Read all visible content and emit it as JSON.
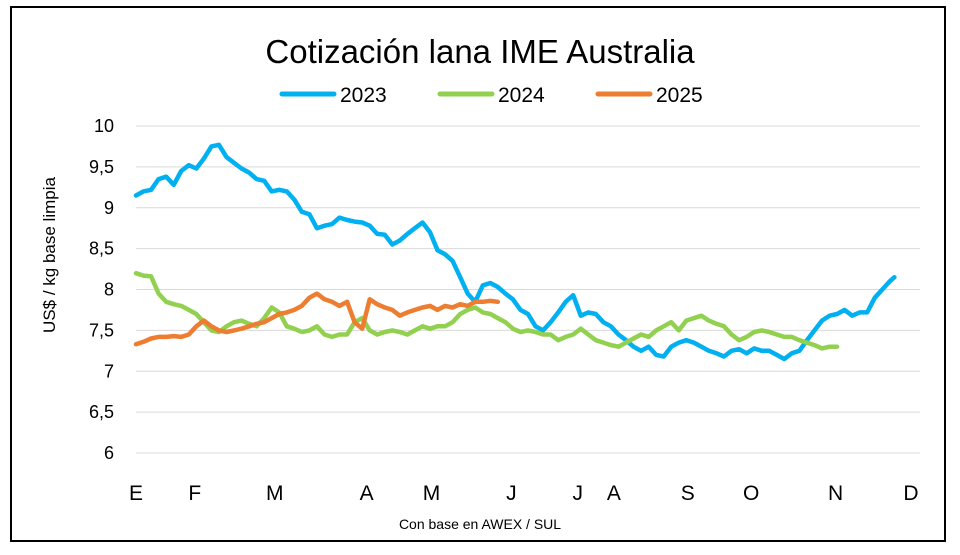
{
  "chart_data": {
    "type": "line",
    "title": "Cotización lana IME Australia",
    "ylabel": "US$ / kg base limpia",
    "xlabel": "Con base en AWEX / SUL",
    "ylim": [
      6,
      10
    ],
    "xlim": [
      0,
      52
    ],
    "y_ticks": [
      "6",
      "6,5",
      "7",
      "7,5",
      "8",
      "8,5",
      "9",
      "9,5",
      "10"
    ],
    "y_tick_values": [
      6,
      6.5,
      7,
      7.5,
      8,
      8.5,
      9,
      9.5,
      10
    ],
    "months": [
      "E",
      "F",
      "M",
      "A",
      "M",
      "J",
      "J",
      "A",
      "S",
      "O",
      "N",
      "D"
    ],
    "month_positions": [
      0,
      3.9,
      9.2,
      15.3,
      19.6,
      24.9,
      29.3,
      31.7,
      36.6,
      40.8,
      46.4,
      51.4
    ],
    "grid": true,
    "legend": "top",
    "series": [
      {
        "name": "2023",
        "color": "#00B0F0",
        "points": [
          [
            0,
            9.15
          ],
          [
            0.5,
            9.2
          ],
          [
            1,
            9.22
          ],
          [
            1.5,
            9.35
          ],
          [
            2,
            9.38
          ],
          [
            2.5,
            9.28
          ],
          [
            3,
            9.45
          ],
          [
            3.5,
            9.52
          ],
          [
            4,
            9.48
          ],
          [
            4.5,
            9.6
          ],
          [
            5,
            9.75
          ],
          [
            5.5,
            9.77
          ],
          [
            6,
            9.62
          ],
          [
            6.5,
            9.55
          ],
          [
            7,
            9.48
          ],
          [
            7.5,
            9.43
          ],
          [
            8,
            9.35
          ],
          [
            8.5,
            9.33
          ],
          [
            9,
            9.2
          ],
          [
            9.5,
            9.22
          ],
          [
            10,
            9.2
          ],
          [
            10.5,
            9.1
          ],
          [
            11,
            8.95
          ],
          [
            11.5,
            8.92
          ],
          [
            12,
            8.75
          ],
          [
            12.5,
            8.78
          ],
          [
            13,
            8.8
          ],
          [
            13.5,
            8.88
          ],
          [
            14,
            8.85
          ],
          [
            14.5,
            8.83
          ],
          [
            15,
            8.82
          ],
          [
            15.5,
            8.78
          ],
          [
            16,
            8.68
          ],
          [
            16.5,
            8.67
          ],
          [
            17,
            8.55
          ],
          [
            17.5,
            8.6
          ],
          [
            18,
            8.68
          ],
          [
            18.5,
            8.75
          ],
          [
            19,
            8.82
          ],
          [
            19.5,
            8.7
          ],
          [
            20,
            8.48
          ],
          [
            20.5,
            8.43
          ],
          [
            21,
            8.35
          ],
          [
            21.5,
            8.15
          ],
          [
            22,
            7.95
          ],
          [
            22.5,
            7.85
          ],
          [
            23,
            8.05
          ],
          [
            23.5,
            8.08
          ],
          [
            24,
            8.03
          ],
          [
            24.5,
            7.95
          ],
          [
            25,
            7.88
          ],
          [
            25.5,
            7.75
          ],
          [
            26,
            7.7
          ],
          [
            26.5,
            7.55
          ],
          [
            27,
            7.5
          ],
          [
            27.5,
            7.6
          ],
          [
            28,
            7.72
          ],
          [
            28.5,
            7.85
          ],
          [
            29,
            7.93
          ],
          [
            29.5,
            7.68
          ],
          [
            30,
            7.72
          ],
          [
            30.5,
            7.7
          ],
          [
            31,
            7.6
          ],
          [
            31.5,
            7.55
          ],
          [
            32,
            7.45
          ],
          [
            32.5,
            7.38
          ],
          [
            33,
            7.3
          ],
          [
            33.5,
            7.25
          ],
          [
            34,
            7.3
          ],
          [
            34.5,
            7.2
          ],
          [
            35,
            7.18
          ],
          [
            35.5,
            7.3
          ],
          [
            36,
            7.35
          ],
          [
            36.5,
            7.38
          ],
          [
            37,
            7.35
          ],
          [
            37.5,
            7.3
          ],
          [
            38,
            7.25
          ],
          [
            38.5,
            7.22
          ],
          [
            39,
            7.18
          ],
          [
            39.5,
            7.25
          ],
          [
            40,
            7.27
          ],
          [
            40.5,
            7.22
          ],
          [
            41,
            7.28
          ],
          [
            41.5,
            7.25
          ],
          [
            42,
            7.25
          ],
          [
            42.5,
            7.2
          ],
          [
            43,
            7.15
          ],
          [
            43.5,
            7.22
          ],
          [
            44,
            7.25
          ],
          [
            44.5,
            7.38
          ],
          [
            45,
            7.5
          ],
          [
            45.5,
            7.62
          ],
          [
            46,
            7.68
          ],
          [
            46.5,
            7.7
          ],
          [
            47,
            7.75
          ],
          [
            47.5,
            7.68
          ],
          [
            48,
            7.72
          ],
          [
            48.5,
            7.72
          ],
          [
            49,
            7.9
          ],
          [
            49.5,
            8.0
          ],
          [
            50,
            8.1
          ],
          [
            50.3,
            8.15
          ]
        ]
      },
      {
        "name": "2024",
        "color": "#92D050",
        "points": [
          [
            0,
            8.2
          ],
          [
            0.5,
            8.17
          ],
          [
            1,
            8.16
          ],
          [
            1.5,
            7.95
          ],
          [
            2,
            7.85
          ],
          [
            2.5,
            7.82
          ],
          [
            3,
            7.8
          ],
          [
            3.5,
            7.75
          ],
          [
            4,
            7.7
          ],
          [
            4.5,
            7.6
          ],
          [
            5,
            7.5
          ],
          [
            5.5,
            7.48
          ],
          [
            6,
            7.55
          ],
          [
            6.5,
            7.6
          ],
          [
            7,
            7.62
          ],
          [
            7.5,
            7.58
          ],
          [
            8,
            7.55
          ],
          [
            8.5,
            7.65
          ],
          [
            9,
            7.78
          ],
          [
            9.5,
            7.72
          ],
          [
            10,
            7.55
          ],
          [
            10.5,
            7.52
          ],
          [
            11,
            7.48
          ],
          [
            11.5,
            7.5
          ],
          [
            12,
            7.55
          ],
          [
            12.5,
            7.45
          ],
          [
            13,
            7.42
          ],
          [
            13.5,
            7.45
          ],
          [
            14,
            7.45
          ],
          [
            14.5,
            7.6
          ],
          [
            15,
            7.65
          ],
          [
            15.5,
            7.5
          ],
          [
            16,
            7.45
          ],
          [
            16.5,
            7.48
          ],
          [
            17,
            7.5
          ],
          [
            17.5,
            7.48
          ],
          [
            18,
            7.45
          ],
          [
            18.5,
            7.5
          ],
          [
            19,
            7.55
          ],
          [
            19.5,
            7.52
          ],
          [
            20,
            7.55
          ],
          [
            20.5,
            7.55
          ],
          [
            21,
            7.6
          ],
          [
            21.5,
            7.7
          ],
          [
            22,
            7.75
          ],
          [
            22.5,
            7.78
          ],
          [
            23,
            7.72
          ],
          [
            23.5,
            7.7
          ],
          [
            24,
            7.65
          ],
          [
            24.5,
            7.6
          ],
          [
            25,
            7.52
          ],
          [
            25.5,
            7.48
          ],
          [
            26,
            7.5
          ],
          [
            26.5,
            7.48
          ],
          [
            27,
            7.45
          ],
          [
            27.5,
            7.45
          ],
          [
            28,
            7.38
          ],
          [
            28.5,
            7.42
          ],
          [
            29,
            7.45
          ],
          [
            29.5,
            7.52
          ],
          [
            30,
            7.45
          ],
          [
            30.5,
            7.38
          ],
          [
            31,
            7.35
          ],
          [
            31.5,
            7.32
          ],
          [
            32,
            7.3
          ],
          [
            32.5,
            7.35
          ],
          [
            33,
            7.4
          ],
          [
            33.5,
            7.45
          ],
          [
            34,
            7.42
          ],
          [
            34.5,
            7.5
          ],
          [
            35,
            7.55
          ],
          [
            35.5,
            7.6
          ],
          [
            36,
            7.5
          ],
          [
            36.5,
            7.62
          ],
          [
            37,
            7.65
          ],
          [
            37.5,
            7.68
          ],
          [
            38,
            7.62
          ],
          [
            38.5,
            7.58
          ],
          [
            39,
            7.55
          ],
          [
            39.5,
            7.45
          ],
          [
            40,
            7.38
          ],
          [
            40.5,
            7.42
          ],
          [
            41,
            7.48
          ],
          [
            41.5,
            7.5
          ],
          [
            42,
            7.48
          ],
          [
            42.5,
            7.45
          ],
          [
            43,
            7.42
          ],
          [
            43.5,
            7.42
          ],
          [
            44,
            7.38
          ],
          [
            44.5,
            7.35
          ],
          [
            45,
            7.32
          ],
          [
            45.5,
            7.28
          ],
          [
            46,
            7.3
          ],
          [
            46.5,
            7.3
          ]
        ]
      },
      {
        "name": "2025",
        "color": "#ED7D31",
        "points": [
          [
            0,
            7.33
          ],
          [
            0.5,
            7.36
          ],
          [
            1,
            7.4
          ],
          [
            1.5,
            7.42
          ],
          [
            2,
            7.42
          ],
          [
            2.5,
            7.43
          ],
          [
            3,
            7.42
          ],
          [
            3.5,
            7.45
          ],
          [
            4,
            7.55
          ],
          [
            4.5,
            7.62
          ],
          [
            5,
            7.55
          ],
          [
            5.5,
            7.5
          ],
          [
            6,
            7.48
          ],
          [
            6.5,
            7.5
          ],
          [
            7,
            7.52
          ],
          [
            7.5,
            7.55
          ],
          [
            8,
            7.58
          ],
          [
            8.5,
            7.6
          ],
          [
            9,
            7.65
          ],
          [
            9.5,
            7.7
          ],
          [
            10,
            7.72
          ],
          [
            10.5,
            7.75
          ],
          [
            11,
            7.8
          ],
          [
            11.5,
            7.9
          ],
          [
            12,
            7.95
          ],
          [
            12.5,
            7.88
          ],
          [
            13,
            7.85
          ],
          [
            13.5,
            7.8
          ],
          [
            14,
            7.85
          ],
          [
            14.5,
            7.6
          ],
          [
            15,
            7.52
          ],
          [
            15.5,
            7.88
          ],
          [
            16,
            7.82
          ],
          [
            16.5,
            7.78
          ],
          [
            17,
            7.75
          ],
          [
            17.5,
            7.68
          ],
          [
            18,
            7.72
          ],
          [
            18.5,
            7.75
          ],
          [
            19,
            7.78
          ],
          [
            19.5,
            7.8
          ],
          [
            20,
            7.75
          ],
          [
            20.5,
            7.8
          ],
          [
            21,
            7.78
          ],
          [
            21.5,
            7.82
          ],
          [
            22,
            7.8
          ],
          [
            22.5,
            7.85
          ],
          [
            23,
            7.85
          ],
          [
            23.5,
            7.86
          ],
          [
            24,
            7.85
          ]
        ]
      }
    ]
  }
}
